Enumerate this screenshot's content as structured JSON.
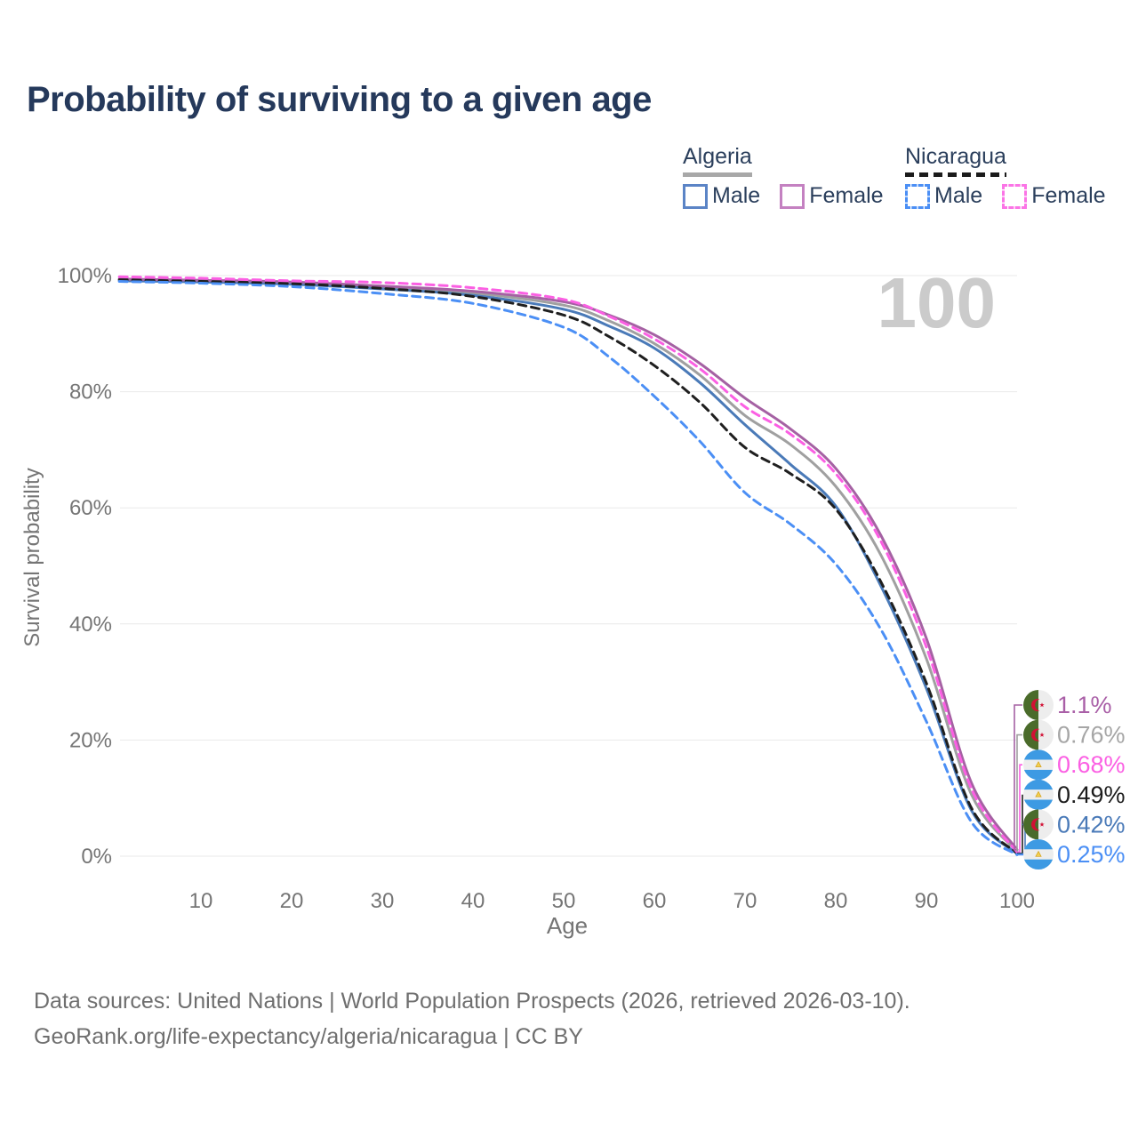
{
  "title": "Probability of surviving to a given age",
  "legend": {
    "algeria": {
      "label": "Algeria",
      "male": "Male",
      "female": "Female",
      "male_swatch_color": "#5b84c6",
      "female_swatch_color": "#c481c1",
      "underline_color": "#a8a8a8"
    },
    "nicaragua": {
      "label": "Nicaragua",
      "male": "Male",
      "female": "Female",
      "male_swatch_color": "#4b8ff5",
      "female_swatch_color": "#fb74e6",
      "underline_color": "#1b1b1b"
    }
  },
  "footer": {
    "line1": "Data sources: United Nations | World Population Prospects (2026, retrieved 2026-03-10).",
    "line2": "GeoRank.org/life-expectancy/algeria/nicaragua | CC BY"
  },
  "chart_data": {
    "type": "line",
    "title": "Probability of surviving to a given age",
    "xlabel": "Age",
    "ylabel": "Survival probability",
    "xlim": [
      1,
      100
    ],
    "ylim": [
      0,
      100
    ],
    "grid": "horizontal",
    "hover_age_label": "100",
    "x_ticks": [
      10,
      20,
      30,
      40,
      50,
      60,
      70,
      80,
      90,
      100
    ],
    "y_ticks": [
      0,
      20,
      40,
      60,
      80,
      100
    ],
    "y_tick_labels": [
      "0%",
      "20%",
      "40%",
      "60%",
      "80%",
      "100%"
    ],
    "x": [
      1,
      10,
      20,
      30,
      40,
      50,
      55,
      60,
      65,
      70,
      75,
      80,
      85,
      90,
      95,
      100
    ],
    "series": [
      {
        "name": "Algeria Female",
        "country": "Algeria",
        "sex": "Female",
        "flag": "algeria",
        "color": "#a561a3",
        "label_color": "#a95fa7",
        "style": "solid",
        "end_label": "1.1%",
        "values": [
          99.4,
          99.2,
          98.9,
          98.2,
          97.3,
          95.5,
          93.2,
          89.8,
          84.9,
          78.9,
          73.6,
          66.8,
          55.2,
          37.5,
          12.5,
          1.1
        ]
      },
      {
        "name": "Algeria",
        "country": "Algeria",
        "sex": "Both",
        "flag": "algeria",
        "color": "#a0a0a0",
        "label_color": "#a6a6a6",
        "style": "solid",
        "end_label": "0.76%",
        "values": [
          99.3,
          99.1,
          98.7,
          98.0,
          97.0,
          94.9,
          92.2,
          88.3,
          82.9,
          75.9,
          70.9,
          63.7,
          51.8,
          34.0,
          10.5,
          0.76
        ]
      },
      {
        "name": "Nicaragua Female",
        "country": "Nicaragua",
        "sex": "Female",
        "flag": "nicaragua",
        "color": "#fb5fe3",
        "label_color": "#fb5fe3",
        "style": "dashed",
        "end_label": "0.68%",
        "values": [
          99.8,
          99.55,
          99.1,
          98.8,
          97.9,
          95.9,
          93.0,
          89.1,
          84.0,
          77.4,
          72.7,
          65.9,
          54.2,
          36.0,
          11.5,
          0.68
        ]
      },
      {
        "name": "Nicaragua",
        "country": "Nicaragua",
        "sex": "Both",
        "flag": "nicaragua",
        "color": "#1f1f1f",
        "label_color": "#1c1c1c",
        "style": "dashed",
        "end_label": "0.49%",
        "values": [
          99.3,
          99.0,
          98.6,
          97.8,
          96.4,
          93.2,
          89.5,
          84.5,
          78.2,
          70.4,
          65.9,
          59.8,
          47.2,
          29.8,
          8.2,
          0.49
        ]
      },
      {
        "name": "Algeria Male",
        "country": "Algeria",
        "sex": "Male",
        "flag": "algeria",
        "color": "#4a7ab8",
        "label_color": "#4a7ab8",
        "style": "solid",
        "end_label": "0.42%",
        "values": [
          99.1,
          98.9,
          98.5,
          97.7,
          96.6,
          94.2,
          91.3,
          87.5,
          81.6,
          74.3,
          67.5,
          60.3,
          46.5,
          28.9,
          7.8,
          0.42
        ]
      },
      {
        "name": "Nicaragua Male",
        "country": "Nicaragua",
        "sex": "Male",
        "flag": "nicaragua",
        "color": "#4b8ff5",
        "label_color": "#4b8ff5",
        "style": "dashed",
        "end_label": "0.25%",
        "values": [
          99.0,
          98.7,
          98.1,
          96.9,
          95.2,
          91.1,
          86.0,
          79.2,
          71.5,
          62.6,
          57.2,
          50.3,
          39.0,
          23.2,
          5.8,
          0.25
        ]
      }
    ]
  }
}
